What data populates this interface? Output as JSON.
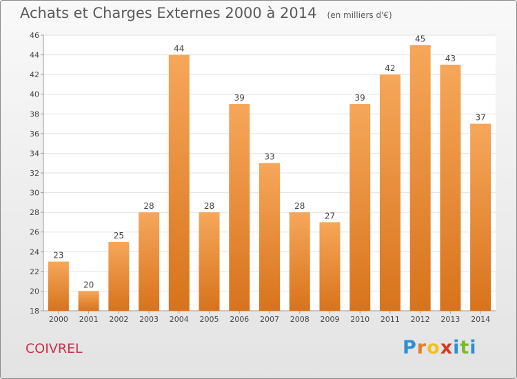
{
  "colors": {
    "bar": "#f19031",
    "bar_top": "#f6a75a",
    "bar_bottom": "#d8731c",
    "commune": "#c8304b"
  },
  "logo": {
    "letters": [
      "P",
      "r",
      "o",
      "x",
      "i",
      "t",
      "i"
    ],
    "colors": [
      "#2b8fd6",
      "#e87c23",
      "#f1c21c",
      "#d53a2a",
      "#2b8fd6",
      "#7cb928",
      "#2b8fd6"
    ]
  },
  "commune": "COIVREL",
  "chart_data": {
    "type": "bar",
    "title": "Achats et Charges Externes 2000 à 2014",
    "subtitle": "(en milliers d'€)",
    "xlabel": "",
    "ylabel": "",
    "categories": [
      "2000",
      "2001",
      "2002",
      "2003",
      "2004",
      "2005",
      "2006",
      "2007",
      "2008",
      "2009",
      "2010",
      "2011",
      "2012",
      "2013",
      "2014"
    ],
    "values": [
      23,
      20,
      25,
      28,
      44,
      28,
      39,
      33,
      28,
      27,
      39,
      42,
      45,
      43,
      37
    ],
    "ylim": [
      18,
      46
    ],
    "yticks": [
      18,
      20,
      22,
      24,
      26,
      28,
      30,
      32,
      34,
      36,
      38,
      40,
      42,
      44,
      46
    ],
    "grid": true,
    "legend": "none"
  }
}
